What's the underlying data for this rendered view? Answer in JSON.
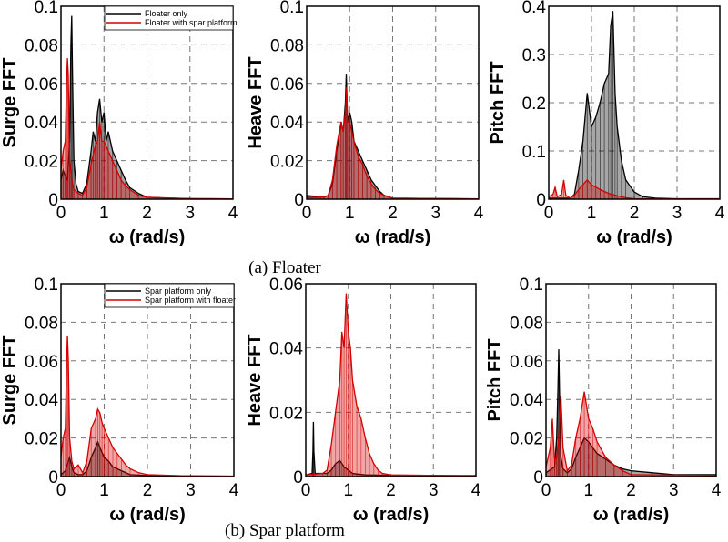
{
  "colors": {
    "series_a": "#000000",
    "series_b": "#d40000",
    "grid": "#777777"
  },
  "captions": {
    "floater": "(a)  Floater",
    "spar": "(b)  Spar  platform"
  },
  "chart_data": [
    {
      "type": "line",
      "ylabel": "Surge FFT",
      "xlabel": "ω (rad/s)",
      "xlim": [
        0,
        4
      ],
      "ylim": [
        0,
        0.1
      ],
      "xticks": [
        "0",
        "1",
        "2",
        "3",
        "4"
      ],
      "yticks": [
        "0",
        "0.02",
        "0.04",
        "0.06",
        "0.08",
        "0.1"
      ],
      "grid": true,
      "legend": "top-right",
      "series": [
        {
          "name": "Floater only",
          "x": [
            0,
            0.05,
            0.1,
            0.15,
            0.2,
            0.23,
            0.25,
            0.27,
            0.3,
            0.35,
            0.4,
            0.5,
            0.6,
            0.7,
            0.75,
            0.8,
            0.85,
            0.9,
            0.95,
            1.0,
            1.05,
            1.1,
            1.2,
            1.3,
            1.4,
            1.5,
            1.6,
            1.8,
            2.0,
            2.5,
            3,
            4
          ],
          "y": [
            0.01,
            0.015,
            0.012,
            0.01,
            0.03,
            0.08,
            0.095,
            0.06,
            0.02,
            0.008,
            0.004,
            0.003,
            0.008,
            0.025,
            0.035,
            0.03,
            0.045,
            0.052,
            0.04,
            0.045,
            0.03,
            0.035,
            0.025,
            0.02,
            0.015,
            0.01,
            0.006,
            0.003,
            0.001,
            0.0005,
            0.0003,
            0.0002
          ]
        },
        {
          "name": "Floater with spar platform",
          "x": [
            0,
            0.05,
            0.1,
            0.13,
            0.15,
            0.17,
            0.2,
            0.25,
            0.3,
            0.4,
            0.5,
            0.6,
            0.7,
            0.8,
            0.85,
            0.9,
            0.95,
            1.0,
            1.1,
            1.2,
            1.3,
            1.4,
            1.5,
            1.6,
            1.8,
            2,
            3,
            4
          ],
          "y": [
            0.015,
            0.025,
            0.03,
            0.06,
            0.073,
            0.065,
            0.02,
            0.01,
            0.005,
            0.003,
            0.002,
            0.006,
            0.018,
            0.028,
            0.03,
            0.04,
            0.03,
            0.03,
            0.025,
            0.02,
            0.015,
            0.01,
            0.007,
            0.005,
            0.002,
            0.001,
            0.0003,
            0.0002
          ]
        }
      ]
    },
    {
      "type": "line",
      "ylabel": "Heave FFT",
      "xlabel": "ω (rad/s)",
      "xlim": [
        0,
        4
      ],
      "ylim": [
        0,
        0.1
      ],
      "xticks": [
        "0",
        "1",
        "2",
        "3",
        "4"
      ],
      "yticks": [
        "0",
        "0.02",
        "0.04",
        "0.06",
        "0.08",
        "0.1"
      ],
      "grid": true,
      "series": [
        {
          "x": [
            0,
            0.4,
            0.5,
            0.6,
            0.7,
            0.8,
            0.85,
            0.9,
            0.92,
            0.95,
            1.0,
            1.05,
            1.1,
            1.2,
            1.3,
            1.4,
            1.5,
            1.6,
            1.7,
            1.8,
            2,
            4
          ],
          "y": [
            0.001,
            0.001,
            0.002,
            0.008,
            0.025,
            0.04,
            0.035,
            0.05,
            0.065,
            0.04,
            0.045,
            0.04,
            0.03,
            0.025,
            0.02,
            0.015,
            0.01,
            0.007,
            0.004,
            0.002,
            0.0005,
            0.0002
          ]
        },
        {
          "x": [
            0,
            0.4,
            0.5,
            0.6,
            0.7,
            0.8,
            0.85,
            0.9,
            0.93,
            0.95,
            1.0,
            1.05,
            1.1,
            1.2,
            1.3,
            1.4,
            1.5,
            1.6,
            1.7,
            1.8,
            2,
            4
          ],
          "y": [
            0.002,
            0.001,
            0.002,
            0.01,
            0.028,
            0.04,
            0.035,
            0.045,
            0.058,
            0.04,
            0.04,
            0.035,
            0.03,
            0.022,
            0.018,
            0.012,
            0.008,
            0.005,
            0.003,
            0.002,
            0.0005,
            0.0002
          ]
        }
      ]
    },
    {
      "type": "line",
      "ylabel": "Pitch FFT",
      "xlabel": "ω (rad/s)",
      "xlim": [
        0,
        4
      ],
      "ylim": [
        0,
        0.4
      ],
      "xticks": [
        "0",
        "1",
        "2",
        "3",
        "4"
      ],
      "yticks": [
        "0",
        "0.1",
        "0.2",
        "0.3",
        "0.4"
      ],
      "grid": true,
      "series": [
        {
          "x": [
            0,
            0.5,
            0.6,
            0.7,
            0.8,
            0.9,
            1.0,
            1.1,
            1.2,
            1.3,
            1.4,
            1.45,
            1.5,
            1.55,
            1.6,
            1.7,
            1.8,
            2.0,
            2.2,
            2.5,
            3,
            4
          ],
          "y": [
            0.002,
            0.002,
            0.01,
            0.06,
            0.12,
            0.22,
            0.15,
            0.17,
            0.2,
            0.24,
            0.26,
            0.36,
            0.39,
            0.22,
            0.15,
            0.08,
            0.04,
            0.015,
            0.005,
            0.002,
            0.001,
            0.001
          ]
        },
        {
          "x": [
            0,
            0.1,
            0.15,
            0.2,
            0.3,
            0.35,
            0.4,
            0.5,
            0.6,
            0.7,
            0.8,
            0.9,
            1.0,
            1.2,
            1.4,
            1.6,
            1.8,
            2,
            4
          ],
          "y": [
            0.005,
            0.01,
            0.025,
            0.005,
            0.01,
            0.04,
            0.008,
            0.002,
            0.008,
            0.02,
            0.03,
            0.04,
            0.03,
            0.02,
            0.012,
            0.007,
            0.003,
            0.001,
            0.0005
          ]
        }
      ]
    },
    {
      "type": "line",
      "ylabel": "Surge FFT",
      "xlabel": "ω (rad/s)",
      "xlim": [
        0,
        4
      ],
      "ylim": [
        0,
        0.1
      ],
      "xticks": [
        "0",
        "1",
        "2",
        "3",
        "4"
      ],
      "yticks": [
        "0",
        "0.02",
        "0.04",
        "0.06",
        "0.08",
        "0.1"
      ],
      "grid": true,
      "legend": "top-right",
      "series": [
        {
          "name": "Spar platform only",
          "x": [
            0,
            0.1,
            0.2,
            0.25,
            0.3,
            0.4,
            0.5,
            0.6,
            0.7,
            0.8,
            0.85,
            0.9,
            1.0,
            1.1,
            1.2,
            1.4,
            1.6,
            2,
            4
          ],
          "y": [
            0.001,
            0.003,
            0.01,
            0.005,
            0.002,
            0.001,
            0.001,
            0.003,
            0.01,
            0.015,
            0.018,
            0.015,
            0.01,
            0.008,
            0.005,
            0.003,
            0.001,
            0.0005,
            0.0002
          ]
        },
        {
          "name": "Spar platform with floater",
          "x": [
            0,
            0.05,
            0.1,
            0.13,
            0.15,
            0.17,
            0.2,
            0.25,
            0.3,
            0.4,
            0.5,
            0.6,
            0.7,
            0.8,
            0.85,
            0.9,
            0.95,
            1.0,
            1.1,
            1.2,
            1.3,
            1.4,
            1.5,
            1.6,
            1.8,
            2,
            3,
            4
          ],
          "y": [
            0.01,
            0.02,
            0.025,
            0.06,
            0.073,
            0.06,
            0.02,
            0.008,
            0.004,
            0.006,
            0.002,
            0.008,
            0.025,
            0.03,
            0.035,
            0.033,
            0.028,
            0.025,
            0.02,
            0.015,
            0.012,
            0.009,
            0.006,
            0.004,
            0.002,
            0.001,
            0.0003,
            0.0002
          ]
        }
      ]
    },
    {
      "type": "line",
      "ylabel": "Heave FFT",
      "xlabel": "ω (rad/s)",
      "xlim": [
        0,
        4
      ],
      "ylim": [
        0,
        0.06
      ],
      "xticks": [
        "0",
        "1",
        "2",
        "3",
        "4"
      ],
      "yticks": [
        "0",
        "0.02",
        "0.04",
        "0.06"
      ],
      "grid": true,
      "series": [
        {
          "x": [
            0,
            0.15,
            0.17,
            0.18,
            0.19,
            0.22,
            0.5,
            0.6,
            0.7,
            0.8,
            0.9,
            1.0,
            1.1,
            1.2,
            1.4,
            2,
            4
          ],
          "y": [
            0.0005,
            0.001,
            0.008,
            0.017,
            0.008,
            0.001,
            0.001,
            0.002,
            0.004,
            0.005,
            0.003,
            0.002,
            0.001,
            0.0008,
            0.0005,
            0.0004,
            0.0003
          ]
        },
        {
          "x": [
            0,
            0.4,
            0.5,
            0.6,
            0.7,
            0.8,
            0.85,
            0.9,
            0.95,
            1.0,
            1.05,
            1.1,
            1.2,
            1.3,
            1.4,
            1.5,
            1.6,
            1.7,
            1.8,
            2,
            4
          ],
          "y": [
            0.0005,
            0.001,
            0.002,
            0.01,
            0.02,
            0.03,
            0.045,
            0.04,
            0.057,
            0.045,
            0.04,
            0.03,
            0.022,
            0.018,
            0.012,
            0.007,
            0.004,
            0.002,
            0.001,
            0.0005,
            0.0002
          ]
        }
      ]
    },
    {
      "type": "line",
      "ylabel": "Pitch FFT",
      "xlabel": "ω (rad/s)",
      "xlim": [
        0,
        4
      ],
      "ylim": [
        0,
        0.1
      ],
      "xticks": [
        "0",
        "1",
        "2",
        "3",
        "4"
      ],
      "yticks": [
        "0",
        "0.02",
        "0.04",
        "0.06",
        "0.08",
        "0.1"
      ],
      "grid": true,
      "series": [
        {
          "x": [
            0,
            0.2,
            0.25,
            0.28,
            0.3,
            0.32,
            0.35,
            0.4,
            0.5,
            0.6,
            0.7,
            0.8,
            0.9,
            1.0,
            1.1,
            1.2,
            1.4,
            1.6,
            1.8,
            2.0,
            2.5,
            3,
            4
          ],
          "y": [
            0.002,
            0.005,
            0.02,
            0.045,
            0.066,
            0.04,
            0.01,
            0.004,
            0.002,
            0.004,
            0.01,
            0.015,
            0.02,
            0.018,
            0.015,
            0.012,
            0.009,
            0.006,
            0.004,
            0.003,
            0.002,
            0.001,
            0.001
          ]
        },
        {
          "x": [
            0,
            0.1,
            0.15,
            0.2,
            0.25,
            0.3,
            0.35,
            0.4,
            0.5,
            0.6,
            0.7,
            0.8,
            0.9,
            1.0,
            1.1,
            1.2,
            1.4,
            1.6,
            1.8,
            2,
            4
          ],
          "y": [
            0.005,
            0.015,
            0.03,
            0.008,
            0.01,
            0.02,
            0.042,
            0.015,
            0.003,
            0.006,
            0.02,
            0.03,
            0.044,
            0.03,
            0.025,
            0.018,
            0.01,
            0.006,
            0.003,
            0.001,
            0.0005
          ]
        }
      ]
    }
  ]
}
